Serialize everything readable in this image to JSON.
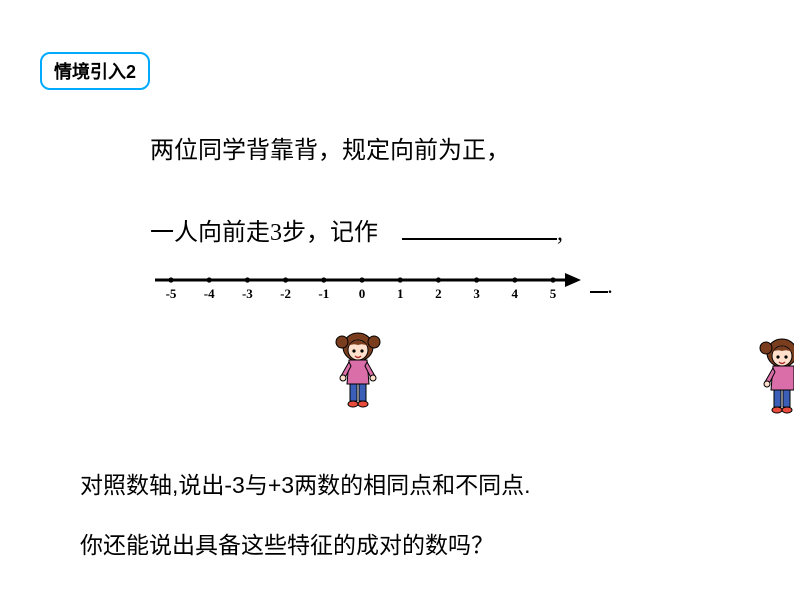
{
  "badge": {
    "text": "情境引入2",
    "fontsize": 18,
    "color": "#000000",
    "border_color": "#00aaff"
  },
  "line1": {
    "text": "两位同学背靠背，规定向前为正，",
    "fontsize": 24,
    "color": "#000000"
  },
  "line2": {
    "prefix": "一人向前走",
    "num": "3",
    "mid": "步，记作　",
    "suffix_comma": ",",
    "fontsize": 24
  },
  "numberline": {
    "min": -5,
    "max": 5,
    "ticks": [
      -5,
      -4,
      -3,
      -2,
      -1,
      0,
      1,
      2,
      3,
      4,
      5
    ],
    "tick_labels": [
      "-5",
      "-4",
      "-3",
      "-2",
      "-1",
      "0",
      "1",
      "2",
      "3",
      "4",
      "5"
    ],
    "line_color": "#000000",
    "tick_fontsize": 13,
    "line_width": 3,
    "arrow": true
  },
  "trailing": {
    "underline_width": 18,
    "dot": "."
  },
  "question1": {
    "text": "对照数轴,说出-3与+3两数的相同点和不同点.",
    "fontsize": 23,
    "color": "#000000"
  },
  "question2": {
    "text": "你还能说出具备这些特征的成对的数吗？",
    "fontsize": 23,
    "color": "#000000"
  },
  "character": {
    "hair_color": "#7a3e1e",
    "face_color": "#ffe0cc",
    "shirt_color": "#d96ea8",
    "pants_color": "#3b5fb8",
    "shoe_color": "#e84c3d",
    "outline": "#000000"
  }
}
